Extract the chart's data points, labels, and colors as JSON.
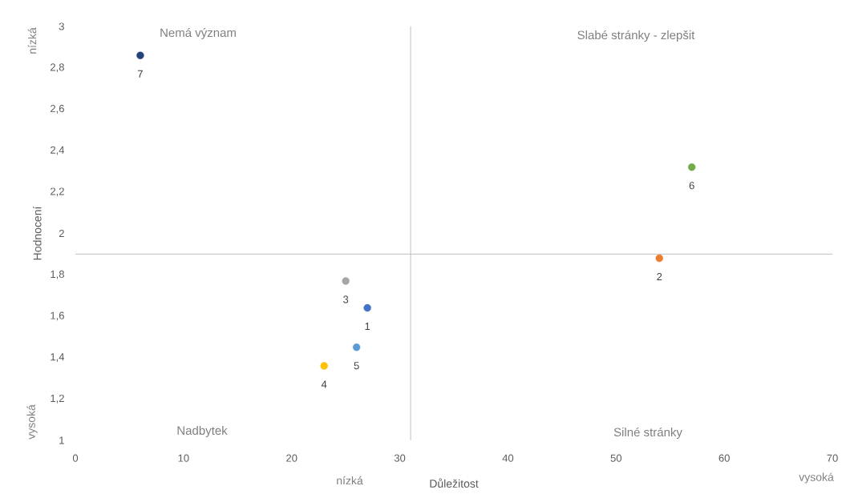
{
  "chart_data": {
    "type": "scatter",
    "xlabel": "Důležitost",
    "ylabel": "Hodnocení",
    "xlim": [
      0,
      70
    ],
    "ylim": [
      1,
      3
    ],
    "xticks": [
      0,
      10,
      20,
      30,
      40,
      50,
      60,
      70
    ],
    "yticks": [
      1,
      {
        "value": 1.2,
        "label": "1,2"
      },
      {
        "value": 1.4,
        "label": "1,4"
      },
      {
        "value": 1.6,
        "label": "1,6"
      },
      {
        "value": 1.8,
        "label": "1,8"
      },
      2,
      {
        "value": 2.2,
        "label": "2,2"
      },
      {
        "value": 2.4,
        "label": "2,4"
      },
      {
        "value": 2.6,
        "label": "2,6"
      },
      {
        "value": 2.8,
        "label": "2,8"
      },
      3
    ],
    "marker": "circle",
    "series": [
      {
        "name": "1",
        "color": "#4472c4",
        "x": [
          27
        ],
        "values": [
          1.64
        ]
      },
      {
        "name": "2",
        "color": "#ed7d31",
        "x": [
          54
        ],
        "values": [
          1.88
        ]
      },
      {
        "name": "3",
        "color": "#a5a5a5",
        "x": [
          25
        ],
        "values": [
          1.77
        ]
      },
      {
        "name": "4",
        "color": "#ffc000",
        "x": [
          23
        ],
        "values": [
          1.36
        ]
      },
      {
        "name": "5",
        "color": "#5b9bd5",
        "x": [
          26
        ],
        "values": [
          1.45
        ]
      },
      {
        "name": "6",
        "color": "#70ad47",
        "x": [
          57
        ],
        "values": [
          2.32
        ]
      },
      {
        "name": "7",
        "color": "#264478",
        "x": [
          6
        ],
        "values": [
          2.86
        ]
      }
    ],
    "ref_lines": [
      {
        "axis": "x",
        "value": 31,
        "color": "#bfbfbf"
      },
      {
        "axis": "y",
        "value": 1.9,
        "color": "#bfbfbf"
      }
    ],
    "annotations": [
      "Nemá význam",
      "Slabé stránky - zlepšit",
      "Nadbytek",
      "Silné stránky",
      "nízká",
      "vysoká",
      "nízká",
      "vysoká"
    ]
  }
}
